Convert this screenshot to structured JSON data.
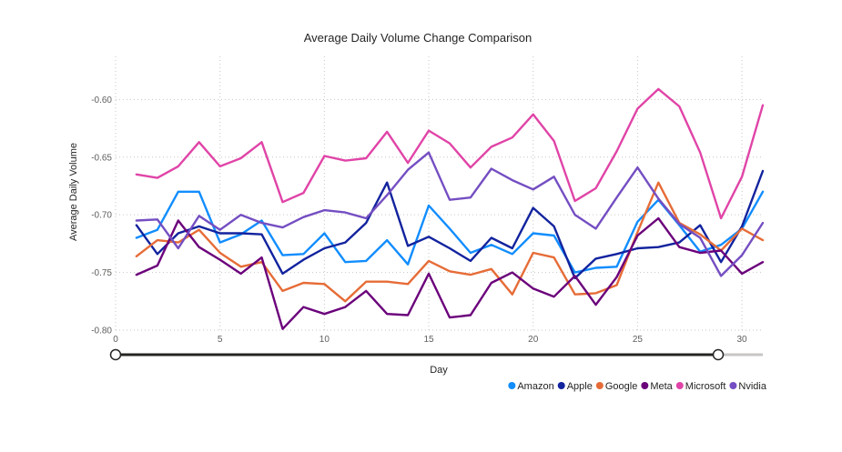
{
  "chart_data": {
    "type": "line",
    "title": "Average Daily Volume Change Comparison",
    "xlabel": "Day",
    "ylabel": "Average Daily Volume",
    "xlim": [
      0,
      31
    ],
    "ylim": [
      -0.8,
      -0.58
    ],
    "x_ticks": [
      0,
      5,
      10,
      15,
      20,
      25,
      30
    ],
    "y_ticks": [
      -0.6,
      -0.65,
      -0.7,
      -0.75,
      -0.8
    ],
    "y_tick_labels": [
      "-0.60",
      "-0.65",
      "-0.70",
      "-0.75",
      "-0.80"
    ],
    "grid": true,
    "legend_position": "bottom-right",
    "x": [
      1,
      2,
      3,
      4,
      5,
      6,
      7,
      8,
      9,
      10,
      11,
      12,
      13,
      14,
      15,
      16,
      17,
      18,
      19,
      20,
      21,
      22,
      23,
      24,
      25,
      26,
      27,
      28,
      29,
      30,
      31
    ],
    "series": [
      {
        "name": "Amazon",
        "color": "#118DFF",
        "values": [
          -0.72,
          -0.713,
          -0.68,
          -0.68,
          -0.724,
          -0.717,
          -0.705,
          -0.735,
          -0.734,
          -0.716,
          -0.741,
          -0.74,
          -0.722,
          -0.743,
          -0.692,
          -0.712,
          -0.733,
          -0.726,
          -0.734,
          -0.716,
          -0.718,
          -0.75,
          -0.746,
          -0.745,
          -0.706,
          -0.687,
          -0.709,
          -0.732,
          -0.726,
          -0.712,
          -0.68
        ]
      },
      {
        "name": "Apple",
        "color": "#12239E",
        "values": [
          -0.709,
          -0.734,
          -0.716,
          -0.71,
          -0.716,
          -0.716,
          -0.717,
          -0.751,
          -0.739,
          -0.729,
          -0.724,
          -0.707,
          -0.672,
          -0.727,
          -0.719,
          -0.729,
          -0.74,
          -0.72,
          -0.729,
          -0.694,
          -0.71,
          -0.755,
          -0.738,
          -0.734,
          -0.729,
          -0.728,
          -0.724,
          -0.709,
          -0.741,
          -0.71,
          -0.662
        ]
      },
      {
        "name": "Google",
        "color": "#E66C37",
        "values": [
          -0.736,
          -0.722,
          -0.724,
          -0.713,
          -0.733,
          -0.745,
          -0.741,
          -0.766,
          -0.759,
          -0.76,
          -0.775,
          -0.758,
          -0.758,
          -0.76,
          -0.74,
          -0.749,
          -0.752,
          -0.747,
          -0.769,
          -0.733,
          -0.737,
          -0.769,
          -0.768,
          -0.761,
          -0.715,
          -0.672,
          -0.707,
          -0.717,
          -0.731,
          -0.712,
          -0.722
        ]
      },
      {
        "name": "Meta",
        "color": "#6B007B",
        "values": [
          -0.752,
          -0.744,
          -0.705,
          -0.728,
          -0.739,
          -0.751,
          -0.737,
          -0.799,
          -0.78,
          -0.786,
          -0.78,
          -0.766,
          -0.786,
          -0.787,
          -0.751,
          -0.789,
          -0.787,
          -0.759,
          -0.75,
          -0.764,
          -0.771,
          -0.753,
          -0.778,
          -0.754,
          -0.718,
          -0.703,
          -0.728,
          -0.733,
          -0.731,
          -0.751,
          -0.741
        ]
      },
      {
        "name": "Microsoft",
        "color": "#E044A7",
        "values": [
          -0.665,
          -0.668,
          -0.658,
          -0.637,
          -0.658,
          -0.651,
          -0.637,
          -0.689,
          -0.681,
          -0.649,
          -0.653,
          -0.651,
          -0.628,
          -0.655,
          -0.627,
          -0.638,
          -0.659,
          -0.641,
          -0.633,
          -0.613,
          -0.636,
          -0.688,
          -0.677,
          -0.645,
          -0.608,
          -0.591,
          -0.606,
          -0.646,
          -0.703,
          -0.667,
          -0.605
        ]
      },
      {
        "name": "Nvidia",
        "color": "#744EC2",
        "values": [
          -0.705,
          -0.704,
          -0.729,
          -0.701,
          -0.713,
          -0.7,
          -0.707,
          -0.711,
          -0.702,
          -0.696,
          -0.698,
          -0.703,
          -0.683,
          -0.661,
          -0.646,
          -0.687,
          -0.685,
          -0.66,
          -0.67,
          -0.678,
          -0.667,
          -0.7,
          -0.712,
          -0.685,
          -0.659,
          -0.686,
          -0.708,
          -0.72,
          -0.753,
          -0.735,
          -0.707
        ]
      }
    ]
  }
}
